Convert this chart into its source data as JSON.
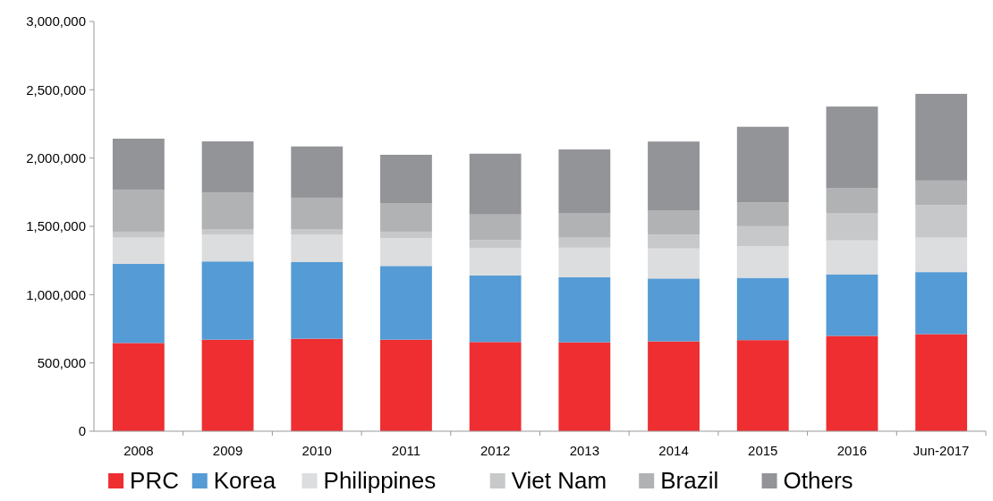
{
  "chart_data": {
    "type": "bar",
    "stacked": true,
    "categories": [
      "2008",
      "2009",
      "2010",
      "2011",
      "2012",
      "2013",
      "2014",
      "2015",
      "2016",
      "Jun-2017"
    ],
    "series": [
      {
        "name": "PRC",
        "color": "#ee2e31",
        "values": [
          646000,
          670000,
          677000,
          670000,
          653000,
          651000,
          658000,
          667000,
          698000,
          711000
        ]
      },
      {
        "name": "Korea",
        "color": "#559bd5",
        "values": [
          579000,
          573000,
          561000,
          540000,
          487000,
          476000,
          460000,
          456000,
          451000,
          454000
        ]
      },
      {
        "name": "Philippines",
        "color": "#dcdddf",
        "values": [
          192000,
          198000,
          203000,
          205000,
          203000,
          217000,
          220000,
          232000,
          248000,
          252000
        ]
      },
      {
        "name": "Viet Nam",
        "color": "#c7c8ca",
        "values": [
          44000,
          39000,
          39000,
          46000,
          57000,
          73000,
          101000,
          146000,
          197000,
          237000
        ]
      },
      {
        "name": "Brazil",
        "color": "#b1b2b4",
        "values": [
          308000,
          267000,
          230000,
          209000,
          187000,
          177000,
          175000,
          173000,
          184000,
          181000
        ]
      },
      {
        "name": "Others",
        "color": "#939498",
        "values": [
          373000,
          375000,
          375000,
          354000,
          445000,
          469000,
          507000,
          555000,
          599000,
          635000
        ]
      }
    ],
    "ylim": [
      0,
      3000000
    ],
    "yticks": [
      {
        "value": 0,
        "label": "0"
      },
      {
        "value": 500000,
        "label": "500,000"
      },
      {
        "value": 1000000,
        "label": "1,000,000"
      },
      {
        "value": 1500000,
        "label": "1,500,000"
      },
      {
        "value": 2000000,
        "label": "2,000,000"
      },
      {
        "value": 2500000,
        "label": "2,500,000"
      },
      {
        "value": 3000000,
        "label": "3,000,000"
      }
    ],
    "legend": "bottom"
  }
}
